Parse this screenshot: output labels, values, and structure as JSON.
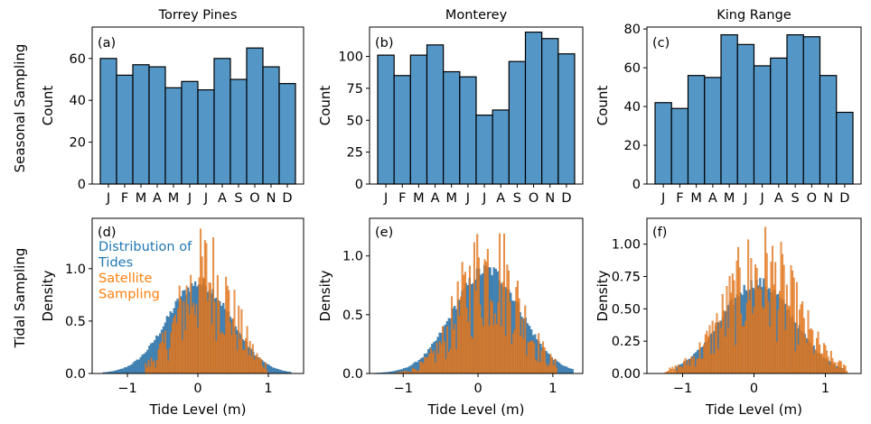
{
  "row_labels": [
    "Seasonal Sampling",
    "Tidal Sampling"
  ],
  "colors": {
    "tides": "#3b7fb3",
    "satellite": "#ee7d1d",
    "bar": "#5497c7"
  },
  "legend": {
    "tides": "Distribution of\nTides",
    "satellite": "Satellite\nSampling"
  },
  "chart_data": [
    {
      "panel": "(a)",
      "title": "Torrey Pines",
      "type": "bar",
      "categories": [
        "J",
        "F",
        "M",
        "A",
        "M",
        "J",
        "J",
        "A",
        "S",
        "O",
        "N",
        "D"
      ],
      "values": [
        60,
        52,
        57,
        56,
        46,
        49,
        45,
        60,
        50,
        65,
        56,
        48
      ],
      "xlabel": "",
      "ylabel": "Count",
      "ylim": [
        0,
        75
      ],
      "yticks": [
        0,
        20,
        40,
        60
      ]
    },
    {
      "panel": "(b)",
      "title": "Monterey",
      "type": "bar",
      "categories": [
        "J",
        "F",
        "M",
        "A",
        "M",
        "J",
        "J",
        "A",
        "S",
        "O",
        "N",
        "D"
      ],
      "values": [
        101,
        85,
        101,
        109,
        88,
        84,
        54,
        58,
        96,
        119,
        114,
        102
      ],
      "xlabel": "",
      "ylabel": "Count",
      "ylim": [
        0,
        123
      ],
      "yticks": [
        0,
        25,
        50,
        75,
        100
      ]
    },
    {
      "panel": "(c)",
      "title": "King Range",
      "type": "bar",
      "categories": [
        "J",
        "F",
        "M",
        "A",
        "M",
        "J",
        "J",
        "A",
        "S",
        "O",
        "N",
        "D"
      ],
      "values": [
        42,
        39,
        56,
        55,
        77,
        72,
        61,
        65,
        77,
        76,
        56,
        37
      ],
      "xlabel": "",
      "ylabel": "Count",
      "ylim": [
        0,
        81
      ],
      "yticks": [
        0,
        20,
        40,
        60,
        80
      ]
    },
    {
      "panel": "(d)",
      "title": "",
      "type": "histogram",
      "xlabel": "Tide Level (m)",
      "ylabel": "Density",
      "xlim": [
        -1.5,
        1.5
      ],
      "ylim": [
        0,
        1.48
      ],
      "xticks": [
        -1,
        0,
        1
      ],
      "yticks": [
        0,
        0.5,
        1.0
      ],
      "tides": {
        "mean": 0.02,
        "sd": 0.45,
        "range": [
          -1.35,
          1.3
        ],
        "peak": 0.86
      },
      "satellite": {
        "mean": 0.12,
        "sd": 0.38,
        "range": [
          -0.75,
          0.98
        ],
        "peak": 0.92,
        "max": 1.38
      }
    },
    {
      "panel": "(e)",
      "title": "",
      "type": "histogram",
      "xlabel": "Tide Level (m)",
      "ylabel": "Density",
      "xlim": [
        -1.45,
        1.4
      ],
      "ylim": [
        0,
        1.32
      ],
      "xticks": [
        -1,
        0,
        1
      ],
      "yticks": [
        0,
        0.5,
        1.0
      ],
      "tides": {
        "mean": 0.12,
        "sd": 0.45,
        "range": [
          -1.4,
          1.25
        ],
        "peak": 0.88
      },
      "satellite": {
        "mean": 0.15,
        "sd": 0.4,
        "range": [
          -1.1,
          1.05
        ],
        "peak": 0.9,
        "max": 1.3
      }
    },
    {
      "panel": "(f)",
      "title": "",
      "type": "histogram",
      "xlabel": "Tide Level (m)",
      "ylabel": "Density",
      "xlim": [
        -1.5,
        1.5
      ],
      "ylim": [
        0,
        1.2
      ],
      "xticks": [
        -1,
        0,
        1
      ],
      "yticks": [
        0,
        0.25,
        0.5,
        0.75,
        1.0
      ],
      "tides": {
        "mean": 0.05,
        "sd": 0.5,
        "range": [
          -1.1,
          1.25
        ],
        "peak": 0.7
      },
      "satellite": {
        "mean": 0.1,
        "sd": 0.5,
        "range": [
          -1.25,
          1.3
        ],
        "peak": 0.75,
        "max": 1.18
      }
    }
  ]
}
